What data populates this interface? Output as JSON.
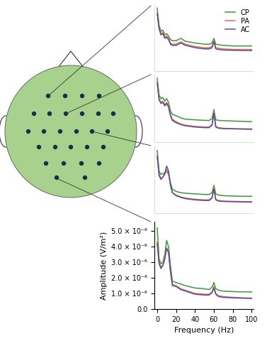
{
  "chart_data": [
    {
      "type": "line",
      "legend": "upper right",
      "tick_labels": false,
      "x": [
        0,
        2,
        4,
        6,
        8,
        10,
        12,
        14,
        16,
        20,
        25,
        30,
        40,
        50,
        55,
        58,
        60,
        62,
        65,
        70,
        80,
        90,
        100
      ],
      "xlim": [
        -3,
        102
      ],
      "ylim": [
        0,
        5.6e-06
      ],
      "series": [
        {
          "name": "CP",
          "color": "#3a9a3a",
          "values": [
            5.4e-06,
            3.9e-06,
            3.4e-06,
            3.5e-06,
            3.1e-06,
            3.2e-06,
            3e-06,
            2.7e-06,
            2.6e-06,
            2.6e-06,
            2.8e-06,
            2.55e-06,
            2.4e-06,
            2.3e-06,
            2.3e-06,
            2.4e-06,
            2.8e-06,
            2.3e-06,
            2.25e-06,
            2.2e-06,
            2.15e-06,
            2.15e-06,
            2.15e-06
          ]
        },
        {
          "name": "PA",
          "color": "#e07050",
          "values": [
            5e-06,
            3.7e-06,
            3.2e-06,
            3.3e-06,
            2.9e-06,
            3e-06,
            2.8e-06,
            2.4e-06,
            2.3e-06,
            2.3e-06,
            2.5e-06,
            2.3e-06,
            2.1e-06,
            2e-06,
            2e-06,
            2.1e-06,
            2.6e-06,
            2e-06,
            1.95e-06,
            1.9e-06,
            1.85e-06,
            1.85e-06,
            1.85e-06
          ]
        },
        {
          "name": "AC",
          "color": "#5a4a9a",
          "values": [
            4.9e-06,
            3.6e-06,
            3.1e-06,
            3.2e-06,
            2.8e-06,
            2.9e-06,
            2.7e-06,
            2.3e-06,
            2.2e-06,
            2.2e-06,
            2.4e-06,
            2.2e-06,
            2e-06,
            1.9e-06,
            1.9e-06,
            2e-06,
            2.5e-06,
            1.9e-06,
            1.85e-06,
            1.8e-06,
            1.78e-06,
            1.76e-06,
            1.75e-06
          ]
        }
      ]
    },
    {
      "type": "line",
      "tick_labels": false,
      "x": [
        0,
        2,
        4,
        6,
        8,
        10,
        12,
        14,
        16,
        20,
        25,
        30,
        40,
        50,
        55,
        58,
        60,
        62,
        65,
        70,
        80,
        90,
        100
      ],
      "xlim": [
        -3,
        102
      ],
      "ylim": [
        0,
        5.6e-06
      ],
      "series": [
        {
          "name": "CP",
          "color": "#3a9a3a",
          "values": [
            5.3e-06,
            3.9e-06,
            3.6e-06,
            3.7e-06,
            3.4e-06,
            3.6e-06,
            3.3e-06,
            2.6e-06,
            2.3e-06,
            2.2e-06,
            2e-06,
            1.9e-06,
            1.85e-06,
            1.8e-06,
            1.8e-06,
            1.95e-06,
            2.7e-06,
            1.85e-06,
            1.8e-06,
            1.78e-06,
            1.75e-06,
            1.72e-06,
            1.7e-06
          ]
        },
        {
          "name": "PA",
          "color": "#e07050",
          "values": [
            5e-06,
            3.6e-06,
            3.3e-06,
            3.4e-06,
            3.1e-06,
            3.3e-06,
            3e-06,
            2.3e-06,
            1.9e-06,
            1.7e-06,
            1.5e-06,
            1.4e-06,
            1.3e-06,
            1.25e-06,
            1.25e-06,
            1.45e-06,
            2.5e-06,
            1.3e-06,
            1.2e-06,
            1.15e-06,
            1.12e-06,
            1.1e-06,
            1.1e-06
          ]
        },
        {
          "name": "AC",
          "color": "#5a4a9a",
          "values": [
            4.9e-06,
            3.5e-06,
            3.2e-06,
            3.3e-06,
            3e-06,
            3.2e-06,
            2.9e-06,
            2.2e-06,
            1.8e-06,
            1.6e-06,
            1.45e-06,
            1.35e-06,
            1.25e-06,
            1.2e-06,
            1.2e-06,
            1.4e-06,
            2.4e-06,
            1.25e-06,
            1.15e-06,
            1.12e-06,
            1.1e-06,
            1.08e-06,
            1.06e-06
          ]
        }
      ]
    },
    {
      "type": "line",
      "tick_labels": false,
      "x": [
        0,
        2,
        4,
        6,
        8,
        10,
        12,
        14,
        16,
        20,
        25,
        30,
        40,
        50,
        55,
        58,
        60,
        62,
        65,
        70,
        80,
        90,
        100
      ],
      "xlim": [
        -3,
        102
      ],
      "ylim": [
        0,
        5.6e-06
      ],
      "series": [
        {
          "name": "CP",
          "color": "#3a9a3a",
          "values": [
            5.2e-06,
            3.5e-06,
            3.2e-06,
            3.3e-06,
            3.3e-06,
            3.5e-06,
            3.2e-06,
            2.5e-06,
            2e-06,
            1.8e-06,
            1.7e-06,
            1.65e-06,
            1.6e-06,
            1.55e-06,
            1.55e-06,
            1.7e-06,
            2.3e-06,
            1.6e-06,
            1.5e-06,
            1.45e-06,
            1.42e-06,
            1.4e-06,
            1.4e-06
          ]
        },
        {
          "name": "PA",
          "color": "#e07050",
          "values": [
            4.8e-06,
            3.2e-06,
            2.9e-06,
            3e-06,
            3.2e-06,
            3.6e-06,
            3.3e-06,
            2.3e-06,
            1.7e-06,
            1.5e-06,
            1.35e-06,
            1.25e-06,
            1.15e-06,
            1.1e-06,
            1.1e-06,
            1.3e-06,
            2.1e-06,
            1.15e-06,
            1.05e-06,
            1e-06,
            9.8e-07,
            9.6e-07,
            9.5e-07
          ]
        },
        {
          "name": "AC",
          "color": "#5a4a9a",
          "values": [
            4.7e-06,
            3.1e-06,
            2.8e-06,
            3e-06,
            3.3e-06,
            3.9e-06,
            3.5e-06,
            2.4e-06,
            1.7e-06,
            1.45e-06,
            1.3e-06,
            1.2e-06,
            1.1e-06,
            1.05e-06,
            1.05e-06,
            1.25e-06,
            2e-06,
            1.1e-06,
            1e-06,
            9.7e-07,
            9.5e-07,
            9.3e-07,
            9.2e-07
          ]
        }
      ]
    },
    {
      "type": "line",
      "x_label": "Frequency (Hz)",
      "y_label": "Amplitude (V/m²)",
      "x": [
        0,
        2,
        4,
        6,
        8,
        10,
        12,
        14,
        16,
        20,
        25,
        30,
        40,
        50,
        55,
        58,
        60,
        62,
        65,
        70,
        80,
        90,
        100
      ],
      "xlim": [
        -3,
        102
      ],
      "ylim": [
        0,
        5.6e-06
      ],
      "xticks": [
        0,
        20,
        40,
        60,
        80,
        100
      ],
      "yticks": [
        {
          "value": 0,
          "label": "0.0"
        },
        {
          "value": 1e-06,
          "label": "1.0 × 10⁻⁶"
        },
        {
          "value": 2e-06,
          "label": "2.0 × 10⁻⁶"
        },
        {
          "value": 3e-06,
          "label": "3.0 × 10⁻⁶"
        },
        {
          "value": 4e-06,
          "label": "4.0 × 10⁻⁶"
        },
        {
          "value": 5e-06,
          "label": "5.0 × 10⁻⁶"
        }
      ],
      "series": [
        {
          "name": "CP",
          "color": "#3a9a3a",
          "values": [
            5.2e-06,
            3.2e-06,
            2.9e-06,
            3e-06,
            3.5e-06,
            4.4e-06,
            4e-06,
            2.8e-06,
            1.8e-06,
            1.7e-06,
            1.6e-06,
            1.5e-06,
            1.35e-06,
            1.3e-06,
            1.25e-06,
            1.4e-06,
            1.7e-06,
            1.3e-06,
            1.2e-06,
            1.15e-06,
            1.12e-06,
            1.1e-06,
            1.1e-06
          ]
        },
        {
          "name": "PA",
          "color": "#e07050",
          "values": [
            4.3e-06,
            3e-06,
            2.7e-06,
            2.8e-06,
            3.3e-06,
            3.9e-06,
            3.7e-06,
            2.5e-06,
            1.6e-06,
            1.5e-06,
            1.3e-06,
            1.2e-06,
            1e-06,
            9.5e-07,
            9.5e-07,
            1.1e-06,
            1.45e-06,
            1e-06,
            8.5e-07,
            8e-07,
            7.5e-07,
            7.2e-07,
            7e-07
          ]
        },
        {
          "name": "AC",
          "color": "#5a4a9a",
          "values": [
            4.2e-06,
            2.9e-06,
            2.6e-06,
            2.8e-06,
            3.2e-06,
            3.9e-06,
            3.6e-06,
            2.4e-06,
            1.5e-06,
            1.45e-06,
            1.25e-06,
            1.15e-06,
            9.5e-07,
            9e-07,
            9e-07,
            1.05e-06,
            1.35e-06,
            9.5e-07,
            8e-07,
            7.5e-07,
            7.2e-07,
            7e-07,
            6.8e-07
          ]
        }
      ]
    }
  ]
}
